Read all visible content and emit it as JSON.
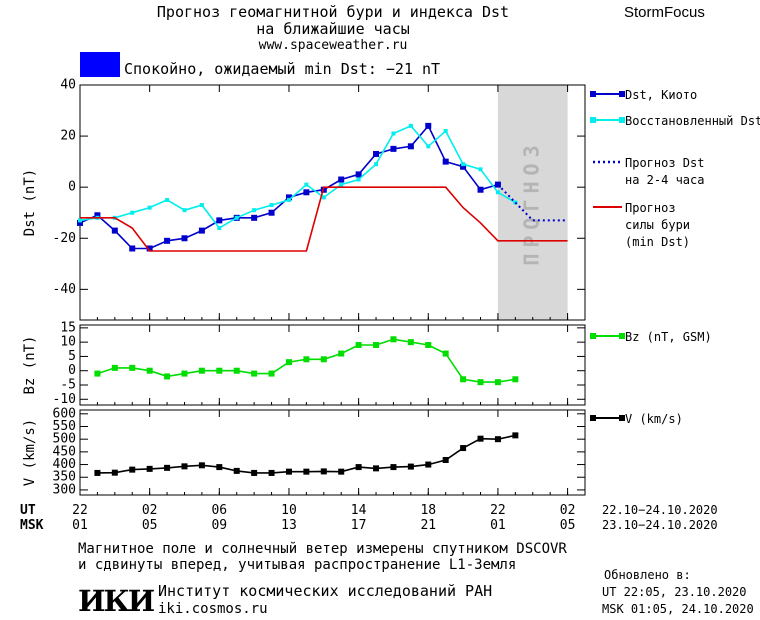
{
  "header": {
    "title": "Прогноз геомагнитной бури и индекса Dst",
    "subtitle": "на ближайшие часы",
    "url": "www.spaceweather.ru",
    "brand": "StormFocus"
  },
  "status": {
    "text": "Спокойно, ожидаемый min Dst: −21 nT",
    "color": "#0000ff"
  },
  "footer": {
    "note_line1": "Магнитное поле и солнечный ветер измерены спутником DSCOVR",
    "note_line2": "и сдвинуты вперед, учитывая распространение L1-Земля",
    "updated_label": "Обновлено в:",
    "updated_ut": "UT  22:05, 23.10.2020",
    "updated_msk": "MSK 01:05, 24.10.2020",
    "logo_text": "ИКИ",
    "institute_name": "Институт космических исследований РАН",
    "institute_url": "iki.cosmos.ru"
  },
  "colors": {
    "dst_kyoto": "#0000cc",
    "dst_restored": "#00eeee",
    "forecast_dst": "#0000cc",
    "forecast_min": "#dd0000",
    "bz": "#00dd00",
    "speed": "#000000",
    "forecast_zone": "#d8d8d8"
  },
  "chart_data": [
    {
      "type": "line",
      "ylabel": "Dst (nT)",
      "ylim": [
        -52,
        40
      ],
      "yticks": [
        40,
        20,
        0,
        -20,
        -40
      ],
      "xlim": [
        0,
        29
      ],
      "forecast_region": [
        24.0,
        28.0
      ],
      "forecast_label": "ПРОГНОЗ",
      "legend_position": "right",
      "series": [
        {
          "name": "Dst, Киото",
          "x": [
            0,
            1,
            2,
            3,
            4,
            5,
            6,
            7,
            8,
            9,
            10,
            11,
            12,
            13,
            14,
            15,
            16,
            17,
            18,
            19,
            20,
            21,
            22,
            23,
            24
          ],
          "y": [
            -14,
            -11,
            -17,
            -24,
            -24,
            -21,
            -20,
            -17,
            -13,
            -12,
            -12,
            -10,
            -4,
            -2,
            -1,
            3,
            5,
            13,
            15,
            16,
            24,
            10,
            8,
            -1,
            1
          ]
        },
        {
          "name": "Восстановленный Dst",
          "x": [
            0,
            1,
            2,
            3,
            4,
            5,
            6,
            7,
            8,
            9,
            10,
            11,
            12,
            13,
            14,
            15,
            16,
            17,
            18,
            19,
            20,
            21,
            22,
            23,
            24,
            25
          ],
          "y": [
            -13,
            -12,
            -12,
            -10,
            -8,
            -5,
            -9,
            -7,
            -16,
            -12,
            -9,
            -7,
            -5,
            1,
            -4,
            1,
            3,
            9,
            21,
            24,
            16,
            22,
            9,
            7,
            -2,
            -6
          ]
        },
        {
          "name": "Прогноз Dst\nна 2-4 часа",
          "style": "dotted",
          "x": [
            24,
            25,
            26,
            27,
            28
          ],
          "y": [
            1,
            -6,
            -13,
            -13,
            -13
          ]
        },
        {
          "name": "Прогноз\nсилы бури\n(min Dst)",
          "x": [
            0,
            2,
            3,
            4,
            13,
            14,
            21,
            22,
            23,
            24,
            28
          ],
          "y": [
            -12,
            -12,
            -16,
            -25,
            -25,
            0,
            0,
            -8,
            -14,
            -21,
            -21
          ]
        }
      ]
    },
    {
      "type": "line",
      "ylabel": "Bz (nT)",
      "ylim": [
        -12,
        16
      ],
      "yticks": [
        15,
        10,
        5,
        0,
        -5,
        -10
      ],
      "xlim": [
        0,
        29
      ],
      "series": [
        {
          "name": "Bz (nT, GSM)",
          "x": [
            1,
            2,
            3,
            4,
            5,
            6,
            7,
            8,
            9,
            10,
            11,
            12,
            13,
            14,
            15,
            16,
            17,
            18,
            19,
            20,
            21,
            22,
            23,
            24,
            25
          ],
          "y": [
            -1,
            1,
            1,
            0,
            -2,
            -1,
            0,
            0,
            0,
            -1,
            -1,
            3,
            4,
            4,
            6,
            9,
            9,
            11,
            10,
            9,
            6,
            -3,
            -4,
            -4,
            -3
          ]
        }
      ]
    },
    {
      "type": "line",
      "ylabel": "V (km/s)",
      "ylim": [
        280,
        615
      ],
      "yticks": [
        600,
        550,
        500,
        450,
        400,
        350,
        300
      ],
      "xlim": [
        0,
        29
      ],
      "series": [
        {
          "name": "V (km/s)",
          "x": [
            1,
            2,
            3,
            4,
            5,
            6,
            7,
            8,
            9,
            10,
            11,
            12,
            13,
            14,
            15,
            16,
            17,
            18,
            19,
            20,
            21,
            22,
            23,
            24,
            25
          ],
          "y": [
            367,
            368,
            380,
            383,
            387,
            393,
            397,
            390,
            375,
            367,
            367,
            372,
            372,
            373,
            372,
            390,
            385,
            390,
            392,
            400,
            418,
            465,
            502,
            500,
            515
          ]
        }
      ]
    }
  ],
  "x_axis": {
    "ticks": [
      0,
      4,
      8,
      12,
      16,
      20,
      24,
      28
    ],
    "ut_label": "UT",
    "msk_label": "MSK",
    "ut_labels": [
      "22",
      "02",
      "06",
      "10",
      "14",
      "18",
      "22",
      "02"
    ],
    "msk_labels": [
      "01",
      "05",
      "09",
      "13",
      "17",
      "21",
      "01",
      "05"
    ],
    "ut_range": "22.10−24.10.2020",
    "msk_range": "23.10−24.10.2020"
  }
}
